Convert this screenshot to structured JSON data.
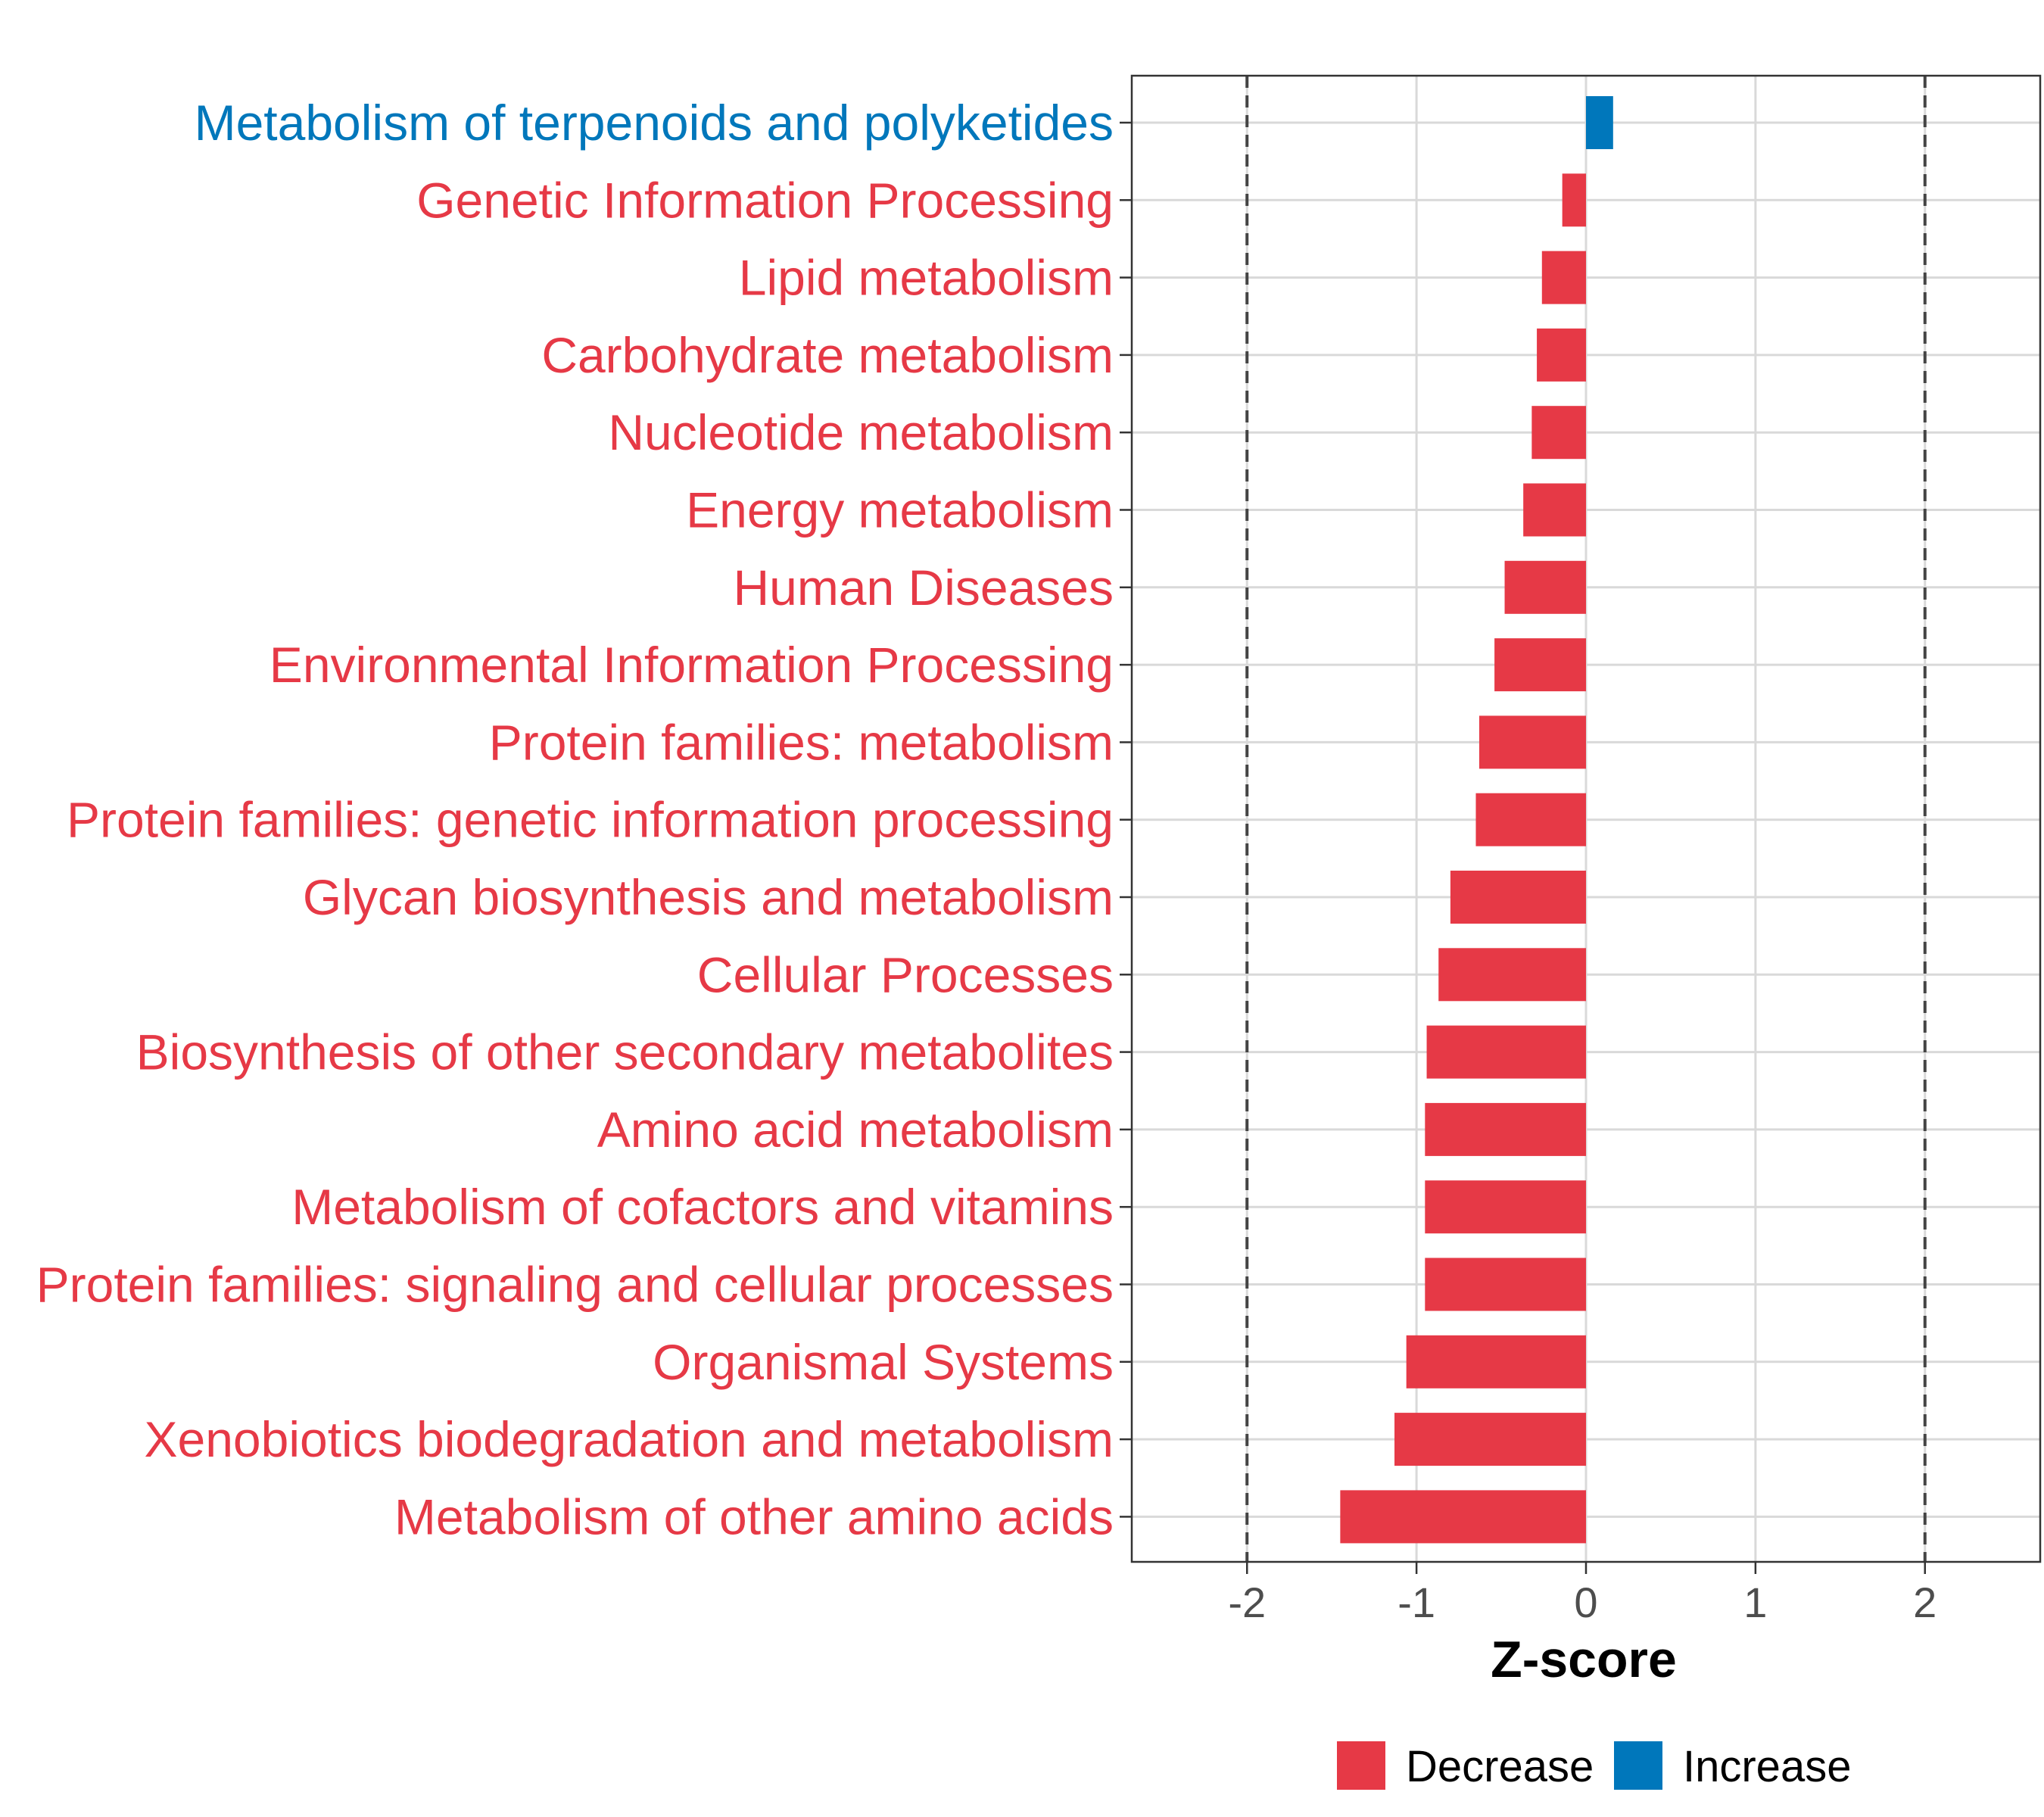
{
  "chart_data": {
    "type": "bar",
    "orientation": "horizontal",
    "categories": [
      "Metabolism of terpenoids and polyketides",
      "Genetic Information Processing",
      "Lipid metabolism",
      "Carbohydrate metabolism",
      "Nucleotide metabolism",
      "Energy metabolism",
      "Human Diseases",
      "Environmental Information Processing",
      "Protein families: metabolism",
      "Protein families: genetic information processing",
      "Glycan biosynthesis and metabolism",
      "Cellular Processes",
      "Biosynthesis of other secondary metabolites",
      "Amino acid metabolism",
      "Metabolism of cofactors and vitamins",
      "Protein families: signaling and cellular processes",
      "Organismal Systems",
      "Xenobiotics biodegradation and metabolism",
      "Metabolism of other amino acids"
    ],
    "values": [
      0.16,
      -0.14,
      -0.26,
      -0.29,
      -0.32,
      -0.37,
      -0.48,
      -0.54,
      -0.63,
      -0.65,
      -0.8,
      -0.87,
      -0.94,
      -0.95,
      -0.95,
      -0.95,
      -1.06,
      -1.13,
      -1.45
    ],
    "groups": [
      "Increase",
      "Decrease",
      "Decrease",
      "Decrease",
      "Decrease",
      "Decrease",
      "Decrease",
      "Decrease",
      "Decrease",
      "Decrease",
      "Decrease",
      "Decrease",
      "Decrease",
      "Decrease",
      "Decrease",
      "Decrease",
      "Decrease",
      "Decrease",
      "Decrease"
    ],
    "xlabel": "Z-score",
    "ylabel": "",
    "xlim": [
      -2.68,
      2.68
    ],
    "xticks": [
      -2,
      -1,
      0,
      1,
      2
    ],
    "xtick_labels": [
      "-2",
      "-1",
      "0",
      "1",
      "2"
    ],
    "reference_lines": [
      -2,
      2
    ],
    "grid": true,
    "legend": {
      "position": "bottom",
      "entries": [
        {
          "label": "Decrease",
          "color": "#E63946"
        },
        {
          "label": "Increase",
          "color": "#0077BB"
        }
      ]
    },
    "colors": {
      "Decrease": "#E63946",
      "Increase": "#0077BB"
    }
  }
}
